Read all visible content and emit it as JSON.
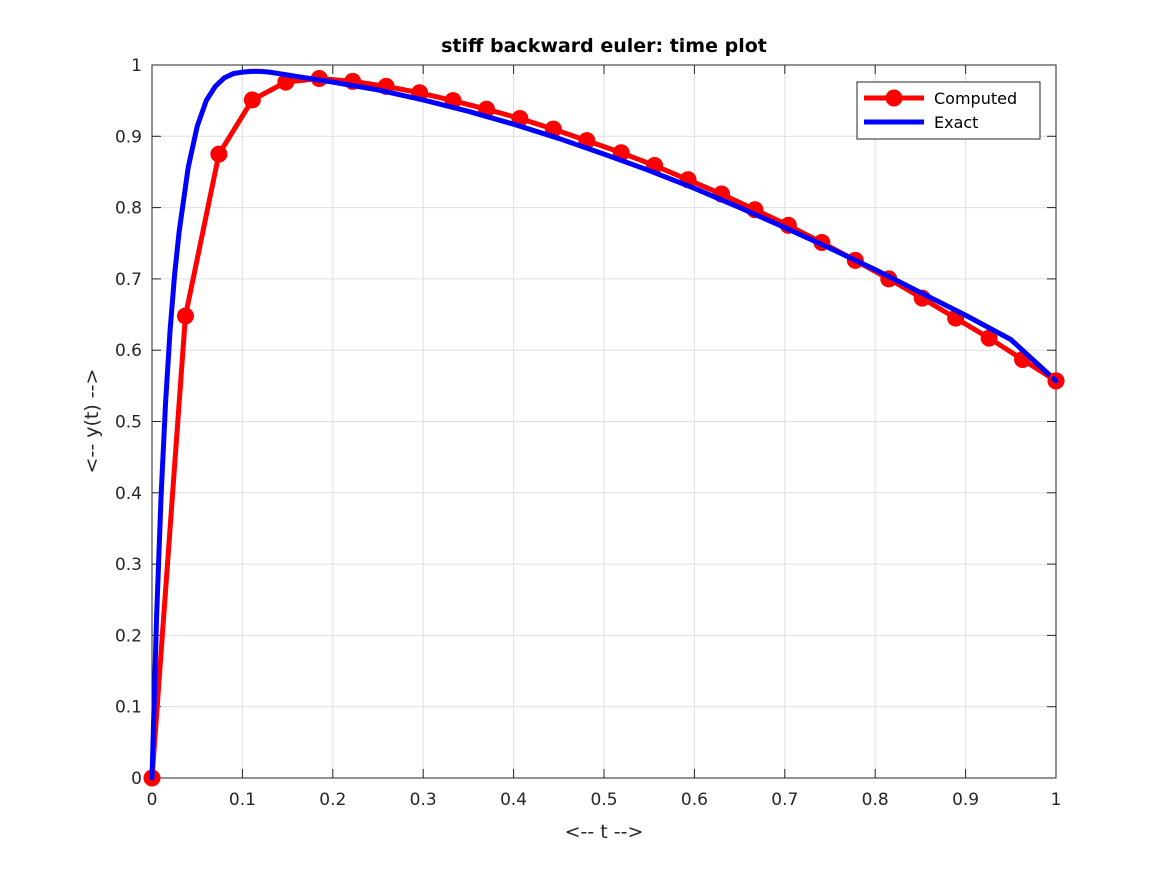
{
  "chart_data": {
    "type": "line",
    "title": "stiff backward euler: time plot",
    "xlabel": "<-- t -->",
    "ylabel": "<-- y(t) -->",
    "xlim": [
      0,
      1
    ],
    "ylim": [
      0,
      1
    ],
    "xticks": [
      "0",
      "0.1",
      "0.2",
      "0.3",
      "0.4",
      "0.5",
      "0.6",
      "0.7",
      "0.8",
      "0.9",
      "1"
    ],
    "yticks": [
      "0",
      "0.1",
      "0.2",
      "0.3",
      "0.4",
      "0.5",
      "0.6",
      "0.7",
      "0.8",
      "0.9",
      "1"
    ],
    "grid": true,
    "box": true,
    "legend_position": "top-right",
    "series": [
      {
        "name": "Computed",
        "color": "#ff0000",
        "marker": "circle",
        "x": [
          0,
          0.037,
          0.074,
          0.111,
          0.148,
          0.185,
          0.222,
          0.259,
          0.296,
          0.333,
          0.37,
          0.407,
          0.444,
          0.481,
          0.519,
          0.556,
          0.593,
          0.63,
          0.667,
          0.704,
          0.741,
          0.778,
          0.815,
          0.852,
          0.889,
          0.926,
          0.963,
          1.0
        ],
        "y": [
          0,
          0.648,
          0.875,
          0.951,
          0.976,
          0.981,
          0.977,
          0.97,
          0.961,
          0.95,
          0.938,
          0.925,
          0.91,
          0.894,
          0.877,
          0.859,
          0.839,
          0.819,
          0.797,
          0.775,
          0.751,
          0.726,
          0.7,
          0.673,
          0.645,
          0.617,
          0.587,
          0.557
        ]
      },
      {
        "name": "Exact",
        "color": "#0000ff",
        "marker": "none",
        "x": [
          0,
          0.005,
          0.01,
          0.015,
          0.02,
          0.025,
          0.03,
          0.04,
          0.05,
          0.06,
          0.07,
          0.08,
          0.09,
          0.1,
          0.11,
          0.12,
          0.13,
          0.14,
          0.15,
          0.16,
          0.18,
          0.2,
          0.25,
          0.3,
          0.35,
          0.4,
          0.45,
          0.5,
          0.55,
          0.6,
          0.65,
          0.7,
          0.75,
          0.8,
          0.85,
          0.9,
          0.95,
          1.0
        ],
        "y": [
          0,
          0.223,
          0.394,
          0.526,
          0.628,
          0.706,
          0.766,
          0.856,
          0.914,
          0.95,
          0.97,
          0.982,
          0.988,
          0.99,
          0.991,
          0.991,
          0.99,
          0.988,
          0.986,
          0.984,
          0.98,
          0.976,
          0.965,
          0.951,
          0.935,
          0.917,
          0.897,
          0.875,
          0.852,
          0.827,
          0.8,
          0.772,
          0.743,
          0.713,
          0.681,
          0.649,
          0.615,
          0.557
        ]
      }
    ]
  }
}
